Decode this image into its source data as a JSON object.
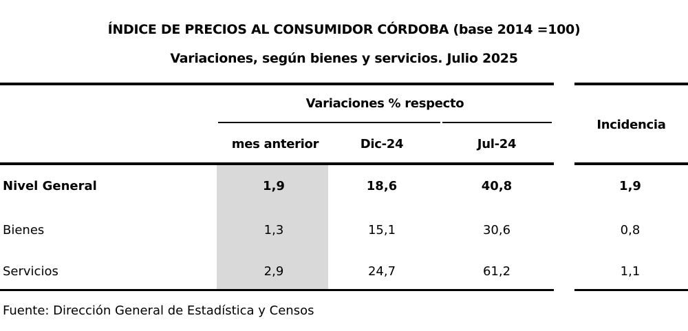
{
  "title": "ÍNDICE DE PRECIOS AL CONSUMIDOR CÓRDOBA (base 2014 =100)",
  "subtitle": "Variaciones, según bienes y servicios. Julio 2025",
  "header": {
    "group": "Variaciones % respecto",
    "columns": [
      "mes anterior",
      "Dic-24",
      "Jul-24"
    ],
    "incidencia": "Incidencia"
  },
  "rows": [
    {
      "label": "Nivel General",
      "values": [
        "1,9",
        "18,6",
        "40,8",
        "1,9"
      ],
      "bold": true
    },
    {
      "label": "Bienes",
      "values": [
        "1,3",
        "15,1",
        "30,6",
        "0,8"
      ],
      "bold": false
    },
    {
      "label": "Servicios",
      "values": [
        "2,9",
        "24,7",
        "61,2",
        "1,1"
      ],
      "bold": false
    }
  ],
  "highlight_color": "#d9d9d9",
  "source": "Fuente: Dirección General de Estadística y Censos"
}
